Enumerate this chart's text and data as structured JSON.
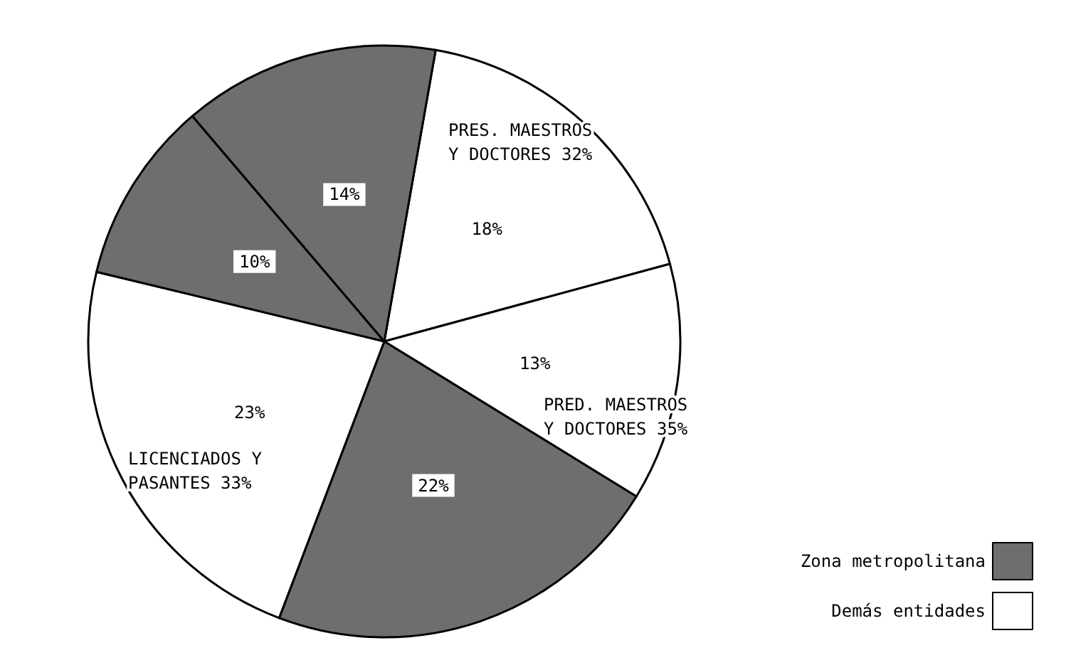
{
  "chart_data": {
    "type": "pie",
    "categories": [
      "Demás entidades",
      null,
      "Zona metropolitana",
      null,
      null,
      null
    ],
    "values": [
      18,
      13,
      22,
      23,
      10,
      14
    ],
    "colors": [
      "#ffffff",
      "#ffffff",
      "#6e6e6e",
      "#ffffff",
      "#6e6e6e",
      "#6e6e6e"
    ],
    "value_labels": [
      "18%",
      "13%",
      "22%",
      "23%",
      "10%",
      "14%"
    ],
    "annotations": [
      "PRES. MAESTROS\nY DOCTORES 32%",
      "PRED. MAESTROS\nY DOCTORES 35%",
      "LICENCIADOS Y\nPASANTES 33%"
    ],
    "legend": "bottom right"
  }
}
